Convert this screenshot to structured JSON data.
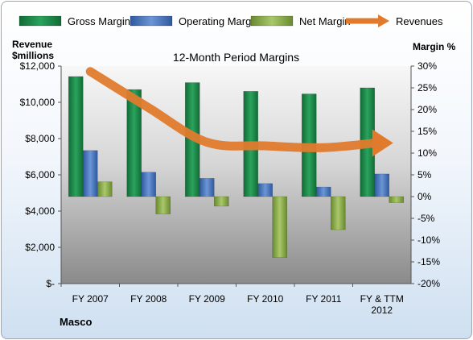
{
  "company": "Masco",
  "chart_data": {
    "type": "bar",
    "title": "12-Month Period Margins",
    "y_left_label": [
      "Revenue",
      "$millions"
    ],
    "y_right_label": "Margin %",
    "categories": [
      [
        "FY 2007"
      ],
      [
        "FY 2008"
      ],
      [
        "FY 2009"
      ],
      [
        "FY 2010"
      ],
      [
        "FY 2011"
      ],
      [
        "FY & TTM",
        "2012"
      ]
    ],
    "y_left": {
      "min": 0,
      "max": 12000,
      "step": 2000,
      "tick_labels": [
        "$-",
        "$2,000",
        "$4,000",
        "$6,000",
        "$8,000",
        "$10,000",
        "$12,000"
      ]
    },
    "y_right": {
      "min": -20,
      "max": 30,
      "step": 5,
      "tick_labels": [
        "-20%",
        "-15%",
        "-10%",
        "-5%",
        "0%",
        "5%",
        "10%",
        "15%",
        "20%",
        "25%",
        "30%"
      ]
    },
    "legend_position": "top",
    "series": [
      {
        "name": "Gross Margin",
        "kind": "bar",
        "axis": "right",
        "color": "#1f8a4c",
        "values": [
          27.6,
          24.6,
          26.2,
          24.2,
          23.6,
          25.0
        ]
      },
      {
        "name": "Operating Margin",
        "kind": "bar",
        "axis": "right",
        "color": "#4a78c2",
        "values": [
          10.6,
          5.6,
          4.2,
          3.0,
          2.2,
          5.2
        ]
      },
      {
        "name": "Net Margin",
        "kind": "bar",
        "axis": "right",
        "color": "#8db04e",
        "values": [
          3.4,
          -4.0,
          -2.2,
          -14.0,
          -7.6,
          -1.4
        ]
      },
      {
        "name": "Revenues",
        "kind": "line",
        "axis": "left",
        "color": "#e07b2e",
        "values": [
          11700,
          9700,
          7800,
          7600,
          7500,
          7800
        ]
      }
    ]
  }
}
